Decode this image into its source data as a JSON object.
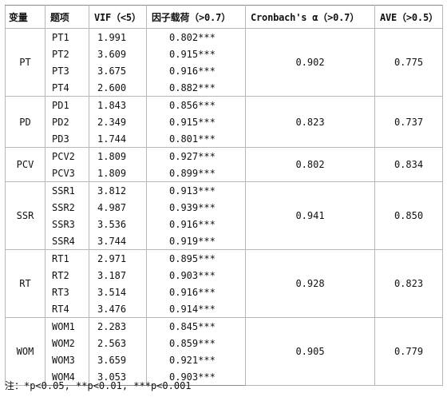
{
  "headers": {
    "variable": "变量",
    "item": "题项",
    "vif": "VIF（<5）",
    "loading": "因子载荷（>0.7）",
    "alpha": "Cronbach's α（>0.7）",
    "ave": "AVE（>0.5）"
  },
  "groups": [
    {
      "variable": "PT",
      "alpha": "0.902",
      "ave": "0.775",
      "items": [
        {
          "item": "PT1",
          "vif": "1.991",
          "loading": "0.802***"
        },
        {
          "item": "PT2",
          "vif": "3.609",
          "loading": "0.915***"
        },
        {
          "item": "PT3",
          "vif": "3.675",
          "loading": "0.916***"
        },
        {
          "item": "PT4",
          "vif": "2.600",
          "loading": "0.882***"
        }
      ]
    },
    {
      "variable": "PD",
      "alpha": "0.823",
      "ave": "0.737",
      "items": [
        {
          "item": "PD1",
          "vif": "1.843",
          "loading": "0.856***"
        },
        {
          "item": "PD2",
          "vif": "2.349",
          "loading": "0.915***"
        },
        {
          "item": "PD3",
          "vif": "1.744",
          "loading": "0.801***"
        }
      ]
    },
    {
      "variable": "PCV",
      "alpha": "0.802",
      "ave": "0.834",
      "items": [
        {
          "item": "PCV2",
          "vif": "1.809",
          "loading": "0.927***"
        },
        {
          "item": "PCV3",
          "vif": "1.809",
          "loading": "0.899***"
        }
      ]
    },
    {
      "variable": "SSR",
      "alpha": "0.941",
      "ave": "0.850",
      "items": [
        {
          "item": "SSR1",
          "vif": "3.812",
          "loading": "0.913***"
        },
        {
          "item": "SSR2",
          "vif": "4.987",
          "loading": "0.939***"
        },
        {
          "item": "SSR3",
          "vif": "3.536",
          "loading": "0.916***"
        },
        {
          "item": "SSR4",
          "vif": "3.744",
          "loading": "0.919***"
        }
      ]
    },
    {
      "variable": "RT",
      "alpha": "0.928",
      "ave": "0.823",
      "items": [
        {
          "item": "RT1",
          "vif": "2.971",
          "loading": "0.895***"
        },
        {
          "item": "RT2",
          "vif": "3.187",
          "loading": "0.903***"
        },
        {
          "item": "RT3",
          "vif": "3.514",
          "loading": "0.916***"
        },
        {
          "item": "RT4",
          "vif": "3.476",
          "loading": "0.914***"
        }
      ]
    },
    {
      "variable": "WOM",
      "alpha": "0.905",
      "ave": "0.779",
      "items": [
        {
          "item": "WOM1",
          "vif": "2.283",
          "loading": "0.845***"
        },
        {
          "item": "WOM2",
          "vif": "2.563",
          "loading": "0.859***"
        },
        {
          "item": "WOM3",
          "vif": "3.659",
          "loading": "0.921***"
        },
        {
          "item": "WOM4",
          "vif": "3.053",
          "loading": "0.903***"
        }
      ]
    }
  ],
  "note": "注：*p<0.05, **p<0.01, ***p<0.001"
}
